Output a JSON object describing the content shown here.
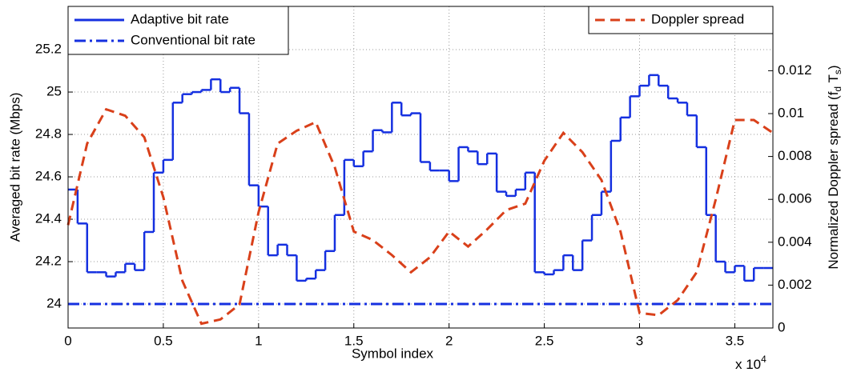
{
  "chart_data": {
    "type": "step-dual",
    "xlabel": "Symbol index",
    "xexp": [
      "x 10",
      "4"
    ],
    "ylabel": "Averaged bit rate (Mbps)",
    "y2label": [
      "Normalized Doppler spread (f",
      "d",
      " T",
      "s",
      ")"
    ],
    "xlim": [
      0,
      3.7
    ],
    "xticks": [
      0,
      0.5,
      1,
      1.5,
      2,
      2.5,
      3,
      3.5
    ],
    "ylim": [
      23.887,
      25.404
    ],
    "yticks": [
      24,
      24.2,
      24.4,
      24.6,
      24.8,
      25,
      25.2
    ],
    "y2lim": [
      0,
      0.015
    ],
    "y2ticks": [
      0,
      0.002,
      0.004,
      0.006,
      0.008,
      0.01,
      0.012
    ],
    "grid": true,
    "legend_loc": "upper left",
    "legend2_loc": "upper right",
    "series": [
      {
        "name": "Adaptive bit rate",
        "color": "#1530e0",
        "style": "step",
        "axis": "y",
        "x": [
          0,
          0.05,
          0.1,
          0.15,
          0.2,
          0.25,
          0.3,
          0.35,
          0.4,
          0.45,
          0.5,
          0.55,
          0.6,
          0.65,
          0.7,
          0.75,
          0.8,
          0.85,
          0.9,
          0.95,
          1,
          1.05,
          1.1,
          1.15,
          1.2,
          1.25,
          1.3,
          1.35,
          1.4,
          1.45,
          1.5,
          1.55,
          1.6,
          1.65,
          1.7,
          1.75,
          1.8,
          1.85,
          1.9,
          1.95,
          2,
          2.05,
          2.1,
          2.15,
          2.2,
          2.25,
          2.3,
          2.35,
          2.4,
          2.45,
          2.5,
          2.55,
          2.6,
          2.65,
          2.7,
          2.75,
          2.8,
          2.85,
          2.9,
          2.95,
          3,
          3.05,
          3.1,
          3.15,
          3.2,
          3.25,
          3.3,
          3.35,
          3.4,
          3.45,
          3.5,
          3.55,
          3.6,
          3.65
        ],
        "values": [
          24.54,
          24.38,
          24.15,
          24.15,
          24.13,
          24.15,
          24.19,
          24.16,
          24.34,
          24.62,
          24.68,
          24.95,
          24.99,
          25.0,
          25.01,
          25.06,
          25.0,
          25.02,
          24.9,
          24.56,
          24.46,
          24.23,
          24.28,
          24.23,
          24.11,
          24.12,
          24.16,
          24.25,
          24.42,
          24.68,
          24.65,
          24.72,
          24.82,
          24.81,
          24.95,
          24.89,
          24.9,
          24.67,
          24.63,
          24.63,
          24.58,
          24.74,
          24.72,
          24.66,
          24.71,
          24.53,
          24.51,
          24.54,
          24.62,
          24.15,
          24.14,
          24.16,
          24.23,
          24.16,
          24.3,
          24.42,
          24.53,
          24.77,
          24.88,
          24.98,
          25.03,
          25.08,
          25.03,
          24.97,
          24.95,
          24.89,
          24.74,
          24.42,
          24.2,
          24.15,
          24.18,
          24.11,
          24.17,
          24.17
        ]
      },
      {
        "name": "Conventional bit rate",
        "color": "#1530e0",
        "style": "dashdot",
        "axis": "y",
        "x": [
          0,
          3.7
        ],
        "values": [
          24,
          24
        ]
      },
      {
        "name": "Doppler spread",
        "color": "#d9401a",
        "style": "dashed",
        "axis": "y2",
        "x": [
          0,
          0.1,
          0.2,
          0.3,
          0.4,
          0.5,
          0.6,
          0.7,
          0.8,
          0.9,
          1,
          1.1,
          1.2,
          1.3,
          1.4,
          1.5,
          1.6,
          1.7,
          1.8,
          1.9,
          2,
          2.1,
          2.2,
          2.3,
          2.4,
          2.5,
          2.6,
          2.7,
          2.8,
          2.9,
          3,
          3.1,
          3.2,
          3.3,
          3.4,
          3.5,
          3.6,
          3.7
        ],
        "values": [
          0.0048,
          0.0086,
          0.0102,
          0.0099,
          0.0089,
          0.0061,
          0.0022,
          0.0002,
          0.0004,
          0.0011,
          0.0054,
          0.0086,
          0.0092,
          0.0096,
          0.0075,
          0.0045,
          0.0041,
          0.0034,
          0.0026,
          0.0033,
          0.0045,
          0.0038,
          0.0046,
          0.0055,
          0.0058,
          0.0078,
          0.0091,
          0.0082,
          0.0069,
          0.0045,
          0.0007,
          0.0006,
          0.0013,
          0.0026,
          0.006,
          0.0097,
          0.0097,
          0.0091
        ]
      }
    ]
  }
}
